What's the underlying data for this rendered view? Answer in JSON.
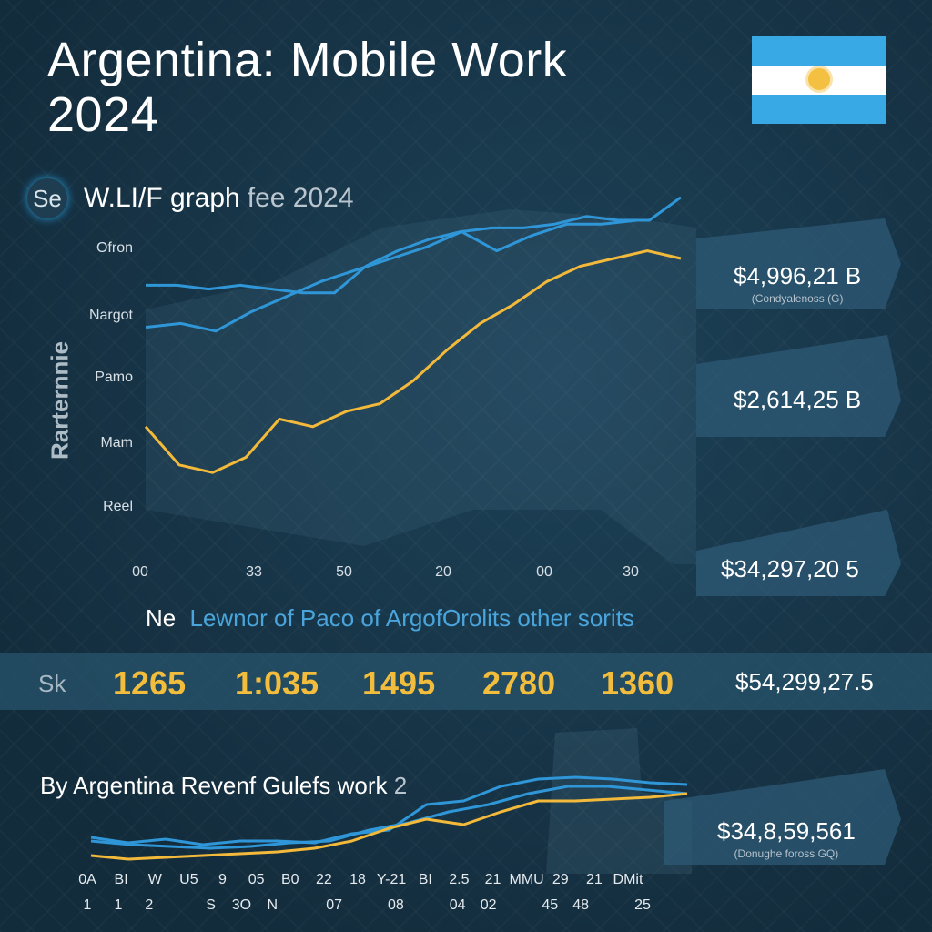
{
  "header": {
    "title_line1": "Argentina: Mobile Work",
    "title_line2": "2024",
    "flag": {
      "colors": [
        "#39a9e6",
        "#ffffff",
        "#39a9e6"
      ],
      "sun_color": "#f4c042",
      "icon": "argentina-flag-icon"
    }
  },
  "subtitle": {
    "badge": "Se",
    "main": "W.LI/F graph",
    "gray": "fee 2024"
  },
  "chart_data": [
    {
      "type": "line",
      "ylabel": "Rarternnie",
      "y_ticks": [
        "Ofron",
        "Nargot",
        "Pamo",
        "Mam",
        "Reel"
      ],
      "x_ticks": [
        "00",
        "33",
        "50",
        "20",
        "00",
        "30"
      ],
      "series": [
        {
          "color": "#2f96d8",
          "values": [
            73,
            73,
            72,
            73,
            72,
            71,
            71,
            78,
            82,
            85,
            87,
            88,
            88,
            89,
            91,
            90,
            90,
            96
          ]
        },
        {
          "color": "#2f96d8",
          "values": [
            62,
            63,
            61,
            66,
            70,
            74,
            77,
            80,
            83,
            87,
            82,
            86,
            89,
            89,
            90
          ]
        },
        {
          "color": "#f2b93b",
          "values": [
            36,
            26,
            24,
            28,
            38,
            36,
            40,
            42,
            48,
            56,
            63,
            68,
            74,
            78,
            80,
            82,
            80
          ]
        }
      ],
      "ylim": [
        0,
        100
      ],
      "value_labels": [
        {
          "value": "$4,996,21 B",
          "note": "(Condyalenoss (G)"
        },
        {
          "value": "$2,614,25 B",
          "note": ""
        },
        {
          "value": "$34,297,20 5",
          "note": ""
        }
      ]
    },
    {
      "type": "line",
      "x_ticks_row1": [
        "0A",
        "BI",
        "W",
        "U5",
        "9",
        "05",
        "B0",
        "22",
        "18",
        "Y-21",
        "BI",
        "2.5",
        "21",
        "MMU",
        "29",
        "21",
        "DMit"
      ],
      "x_ticks_row2": [
        "1",
        "1",
        "2",
        "",
        "S",
        "3O",
        "N",
        "",
        "07",
        "",
        "08",
        "",
        "04",
        "02",
        "",
        "45",
        "48",
        "",
        "25"
      ],
      "series": [
        {
          "color": "#2f96d8",
          "values": [
            20,
            17,
            19,
            16,
            18,
            18,
            17,
            22,
            24,
            38,
            40,
            48,
            52,
            53,
            52,
            50,
            49
          ]
        },
        {
          "color": "#2f96d8",
          "values": [
            18,
            16,
            15,
            14,
            15,
            17,
            18,
            24,
            28,
            34,
            38,
            44,
            48,
            48,
            46,
            44
          ]
        },
        {
          "color": "#f2b93b",
          "values": [
            10,
            8,
            9,
            10,
            11,
            12,
            14,
            18,
            25,
            30,
            27,
            34,
            40,
            40,
            41,
            42,
            44
          ]
        }
      ],
      "ylim": [
        0,
        60
      ],
      "value_label": {
        "value": "$34,8,59,561",
        "note": "(Donughe foross GQ)"
      }
    }
  ],
  "caption": {
    "lead": "Ne",
    "text": "Lewnor of Paco of ArgofOrolits other sorits"
  },
  "strip": {
    "label": "Sk",
    "numbers": [
      "1265",
      "1:035",
      "1495",
      "2780",
      "1360"
    ],
    "value": "$54,299,27.5"
  },
  "bottom_title": {
    "lead": "By",
    "text": "Argentina Revenf Gulefs work",
    "gray": "2"
  }
}
